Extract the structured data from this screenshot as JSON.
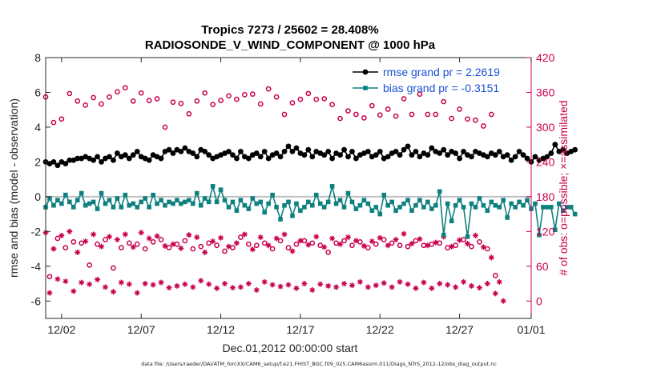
{
  "chart_data": {
    "type": "line",
    "title": "Tropics 7273 / 25602 = 28.408%",
    "subtitle": "RADIOSONDE_V_WIND_COMPONENT @ 1000 hPa",
    "xlabel": "Dec.01,2012 00:00:00 start",
    "ylabel": "rmse and bias (model - observation)",
    "y2label": "# of obs: o=possible; ×=assimilated",
    "xlim": [
      0.5,
      31.0
    ],
    "ylim": [
      -7,
      8
    ],
    "y2lim": [
      -30,
      420
    ],
    "x_ticks": [
      1.5,
      6.5,
      11.5,
      16.5,
      21.5,
      26.5,
      31.0
    ],
    "x_tick_labels": [
      "12/02",
      "12/07",
      "12/12",
      "12/17",
      "12/22",
      "12/27",
      "01/01"
    ],
    "y_ticks": [
      -6,
      -4,
      -2,
      0,
      2,
      4,
      6,
      8
    ],
    "y_tick_labels": [
      "-6",
      "-4",
      "-2",
      "0",
      "2",
      "4",
      "6",
      "8"
    ],
    "y2_ticks": [
      0,
      60,
      120,
      180,
      240,
      300,
      360,
      420
    ],
    "y2_tick_labels": [
      "0",
      "60",
      "120",
      "180",
      "240",
      "300",
      "360",
      "420"
    ],
    "zero_line": 0,
    "legend_position": "top-right",
    "colors": {
      "rmse": "#000000",
      "bias": "#0f8080",
      "obs": "#c8004e",
      "zero": "#bfbfbf",
      "legend_text": "#1a50d6",
      "right_axis": "#c8004e"
    },
    "series": [
      {
        "name": "rmse grand pr = 2.2619",
        "key": "rmse",
        "start": 0.5,
        "step": 0.25,
        "values": [
          2.0,
          1.9,
          2.0,
          1.8,
          2.0,
          1.9,
          2.1,
          2.1,
          2.2,
          2.2,
          2.3,
          2.2,
          2.1,
          2.3,
          2.0,
          2.2,
          2.3,
          2.1,
          2.5,
          2.3,
          2.4,
          2.2,
          2.4,
          2.6,
          2.3,
          2.2,
          2.1,
          2.4,
          2.3,
          2.2,
          2.6,
          2.7,
          2.5,
          2.7,
          2.6,
          2.8,
          2.6,
          2.5,
          2.3,
          2.7,
          2.6,
          2.4,
          2.2,
          2.3,
          2.4,
          2.5,
          2.6,
          2.4,
          2.2,
          2.6,
          2.3,
          2.2,
          2.4,
          2.5,
          2.3,
          2.6,
          2.2,
          2.4,
          2.5,
          2.3,
          2.6,
          2.9,
          2.6,
          2.8,
          2.5,
          2.4,
          2.7,
          2.3,
          2.6,
          2.5,
          2.4,
          2.6,
          2.2,
          2.5,
          2.4,
          2.7,
          2.3,
          2.6,
          2.2,
          2.4,
          2.5,
          2.6,
          2.3,
          2.4,
          2.6,
          2.2,
          2.3,
          2.5,
          2.6,
          2.4,
          2.7,
          2.9,
          2.4,
          2.6,
          2.3,
          2.5,
          2.4,
          2.8,
          2.6,
          2.5,
          2.7,
          2.4,
          2.6,
          2.5,
          2.2,
          2.6,
          2.4,
          2.3,
          2.6,
          2.5,
          2.4,
          2.3,
          2.5,
          2.4,
          2.6,
          2.3,
          2.4,
          2.1,
          2.3,
          2.6,
          2.4,
          2.2,
          2.0,
          2.3,
          2.1,
          2.2,
          2.3,
          2.5,
          3.0,
          2.6,
          2.7,
          2.5,
          2.6,
          2.7
        ]
      },
      {
        "name": "bias grand pr = -0.3151",
        "key": "bias",
        "start": 0.5,
        "step": 0.25,
        "values": [
          -0.6,
          -0.1,
          -0.5,
          -0.2,
          -0.4,
          0.1,
          -0.3,
          -0.6,
          -0.2,
          0.2,
          -0.5,
          -0.4,
          -0.3,
          -0.7,
          0.2,
          -0.4,
          -0.2,
          -0.6,
          -0.1,
          -0.6,
          0.1,
          -0.5,
          -0.4,
          -0.6,
          -0.3,
          -0.1,
          -0.6,
          0.1,
          -0.4,
          -0.2,
          -0.5,
          -0.3,
          -0.4,
          -0.2,
          -0.4,
          -0.3,
          -0.2,
          -0.4,
          0.2,
          -0.5,
          -0.1,
          -0.3,
          0.6,
          -0.3,
          0.4,
          -0.2,
          -0.6,
          -0.3,
          -0.8,
          -0.2,
          -0.5,
          -0.7,
          -0.1,
          -0.4,
          -0.3,
          -0.9,
          -0.4,
          0.1,
          -0.6,
          -1.3,
          -0.5,
          -0.3,
          -1.1,
          -0.4,
          -0.8,
          -0.6,
          -0.3,
          -0.5,
          0.1,
          -0.4,
          -0.6,
          -0.3,
          0.6,
          -0.4,
          -0.2,
          -0.6,
          0.2,
          -0.3,
          -0.7,
          -0.5,
          -0.2,
          -0.4,
          -0.8,
          -0.6,
          -1.0,
          0.1,
          -0.5,
          -0.3,
          -0.8,
          -0.6,
          -0.4,
          -0.2,
          -0.8,
          -0.5,
          -0.2,
          -0.6,
          -0.3,
          -0.7,
          -0.5,
          0.3,
          -2.2,
          -0.4,
          -1.4,
          -0.5,
          -0.2,
          -0.6,
          -2.3,
          -0.4,
          -0.6,
          -0.1,
          -0.5,
          -0.8,
          -0.3,
          -0.5,
          -0.6,
          -0.2,
          -1.2,
          -0.4,
          -0.6,
          -0.3,
          -0.5,
          -0.2,
          -0.7,
          -0.4,
          -2.2,
          -0.6,
          -0.6,
          -0.6,
          -1.9,
          -0.4,
          -0.8,
          -0.6,
          -0.6,
          -1.0
        ]
      },
      {
        "name": "possible",
        "key": "obs_possible",
        "marker": "o",
        "start": 0.5,
        "step": 0.25,
        "values": [
          352,
          42,
          308,
          108,
          314,
          92,
          358,
          102,
          345,
          100,
          338,
          62,
          351,
          98,
          340,
          106,
          352,
          57,
          361,
          92,
          368,
          100,
          345,
          98,
          359,
          90,
          346,
          102,
          349,
          106,
          300,
          92,
          343,
          98,
          341,
          104,
          323,
          90,
          345,
          94,
          359,
          100,
          339,
          96,
          346,
          86,
          354,
          92,
          348,
          110,
          356,
          98,
          357,
          96,
          340,
          100,
          366,
          90,
          352,
          104,
          322,
          92,
          342,
          98,
          348,
          104,
          358,
          100,
          348,
          96,
          349,
          84,
          339,
          100,
          315,
          104,
          328,
          96,
          322,
          102,
          316,
          92,
          337,
          98,
          321,
          106,
          331,
          100,
          319,
          96,
          349,
          94,
          322,
          104,
          357,
          96,
          322,
          98,
          322,
          100,
          344,
          92,
          315,
          96,
          331,
          106,
          314,
          94,
          312,
          102,
          302,
          90,
          322,
          44
        ]
      },
      {
        "name": "assimilated",
        "key": "obs_assimilated",
        "marker": "*",
        "start": 0.5,
        "step": 0.25,
        "values": [
          118,
          14,
          90,
          38,
          113,
          34,
          120,
          17,
          84,
          32,
          103,
          29,
          115,
          37,
          94,
          24,
          111,
          16,
          106,
          32,
          115,
          29,
          93,
          14,
          118,
          30,
          108,
          28,
          112,
          32,
          95,
          23,
          98,
          26,
          91,
          29,
          114,
          24,
          110,
          35,
          84,
          29,
          103,
          22,
          109,
          30,
          94,
          23,
          100,
          24,
          115,
          30,
          89,
          19,
          110,
          33,
          96,
          28,
          108,
          25,
          115,
          28,
          86,
          22,
          104,
          30,
          97,
          19,
          111,
          29,
          93,
          26,
          108,
          24,
          98,
          30,
          110,
          27,
          104,
          33,
          95,
          24,
          103,
          27,
          109,
          31,
          96,
          24,
          106,
          33,
          116,
          29,
          99,
          22,
          107,
          32,
          96,
          22,
          101,
          30,
          111,
          28,
          94,
          24,
          105,
          33,
          99,
          26,
          113,
          23,
          93,
          30,
          75,
          13,
          33,
          0
        ]
      }
    ]
  },
  "footer": {
    "text": "data file: /Users/raeder/DAI/ATM_forcXX/CAM6_setup/f.e21.FHIST_BGC.f09_025.CAM6assim.011/Diags_NTrS_2012-12/obs_diag_output.nc"
  }
}
